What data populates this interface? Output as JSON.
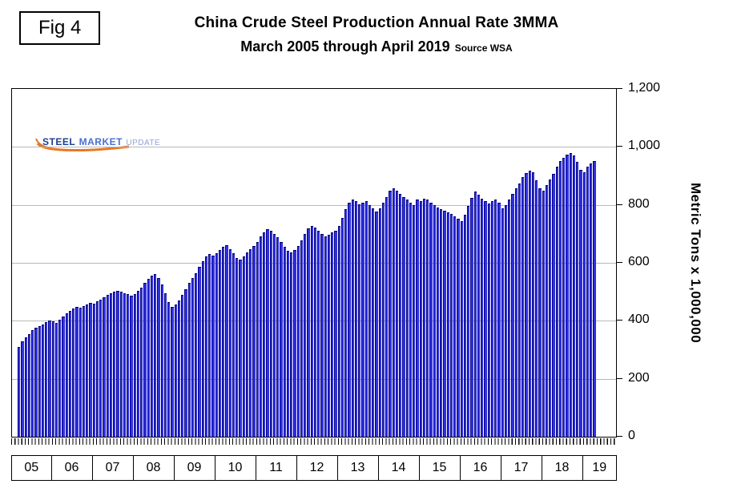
{
  "fig_label": "Fig 4",
  "title": "China Crude Steel Production Annual Rate 3MMA",
  "subtitle": "March 2005 through April 2019",
  "source": "Source WSA",
  "logo": {
    "word1": "STEEL",
    "word2": "MARKET",
    "word3": "UPDATE",
    "swoosh_color": "#e87722"
  },
  "chart_data": {
    "type": "bar",
    "title": "China Crude Steel Production Annual Rate 3MMA",
    "subtitle": "March 2005 through April 2019",
    "xlabel": "",
    "ylabel": "Metric Tons x 1,000,000",
    "ylim": [
      0,
      1200
    ],
    "grid": "horizontal",
    "bar_color": "#3030e0",
    "start_month": "March 2005",
    "end_month": "April 2019",
    "yticks": [
      {
        "value": 0,
        "label": "0"
      },
      {
        "value": 200,
        "label": "200"
      },
      {
        "value": 400,
        "label": "400"
      },
      {
        "value": 600,
        "label": "600"
      },
      {
        "value": 800,
        "label": "800"
      },
      {
        "value": 1000,
        "label": "1,000"
      },
      {
        "value": 1200,
        "label": "1,200"
      }
    ],
    "years": [
      {
        "label": "05",
        "months": 10
      },
      {
        "label": "06",
        "months": 12
      },
      {
        "label": "07",
        "months": 12
      },
      {
        "label": "08",
        "months": 12
      },
      {
        "label": "09",
        "months": 12
      },
      {
        "label": "10",
        "months": 12
      },
      {
        "label": "11",
        "months": 12
      },
      {
        "label": "12",
        "months": 12
      },
      {
        "label": "13",
        "months": 12
      },
      {
        "label": "14",
        "months": 12
      },
      {
        "label": "15",
        "months": 12
      },
      {
        "label": "16",
        "months": 12
      },
      {
        "label": "17",
        "months": 12
      },
      {
        "label": "18",
        "months": 12
      },
      {
        "label": "19",
        "months": 4
      }
    ],
    "values": [
      310,
      328,
      342,
      355,
      368,
      375,
      382,
      388,
      395,
      402,
      398,
      392,
      405,
      415,
      425,
      435,
      442,
      448,
      445,
      450,
      456,
      462,
      458,
      466,
      474,
      482,
      490,
      496,
      500,
      504,
      500,
      496,
      492,
      488,
      492,
      502,
      515,
      530,
      545,
      555,
      560,
      548,
      525,
      495,
      465,
      448,
      455,
      470,
      490,
      510,
      530,
      548,
      565,
      585,
      605,
      622,
      630,
      625,
      632,
      645,
      655,
      660,
      648,
      632,
      618,
      612,
      622,
      635,
      648,
      658,
      672,
      690,
      705,
      715,
      710,
      700,
      688,
      672,
      655,
      642,
      636,
      645,
      658,
      678,
      700,
      718,
      728,
      722,
      712,
      700,
      692,
      698,
      705,
      712,
      728,
      755,
      785,
      808,
      818,
      812,
      802,
      808,
      812,
      800,
      788,
      778,
      788,
      808,
      828,
      848,
      858,
      848,
      838,
      828,
      818,
      808,
      798,
      818,
      812,
      822,
      818,
      808,
      800,
      792,
      785,
      780,
      775,
      768,
      760,
      752,
      745,
      765,
      795,
      825,
      845,
      835,
      822,
      812,
      805,
      812,
      818,
      808,
      788,
      798,
      818,
      838,
      858,
      875,
      895,
      910,
      918,
      912,
      885,
      858,
      848,
      868,
      888,
      908,
      932,
      950,
      962,
      972,
      978,
      970,
      948,
      922,
      912,
      932,
      942,
      952
    ]
  }
}
